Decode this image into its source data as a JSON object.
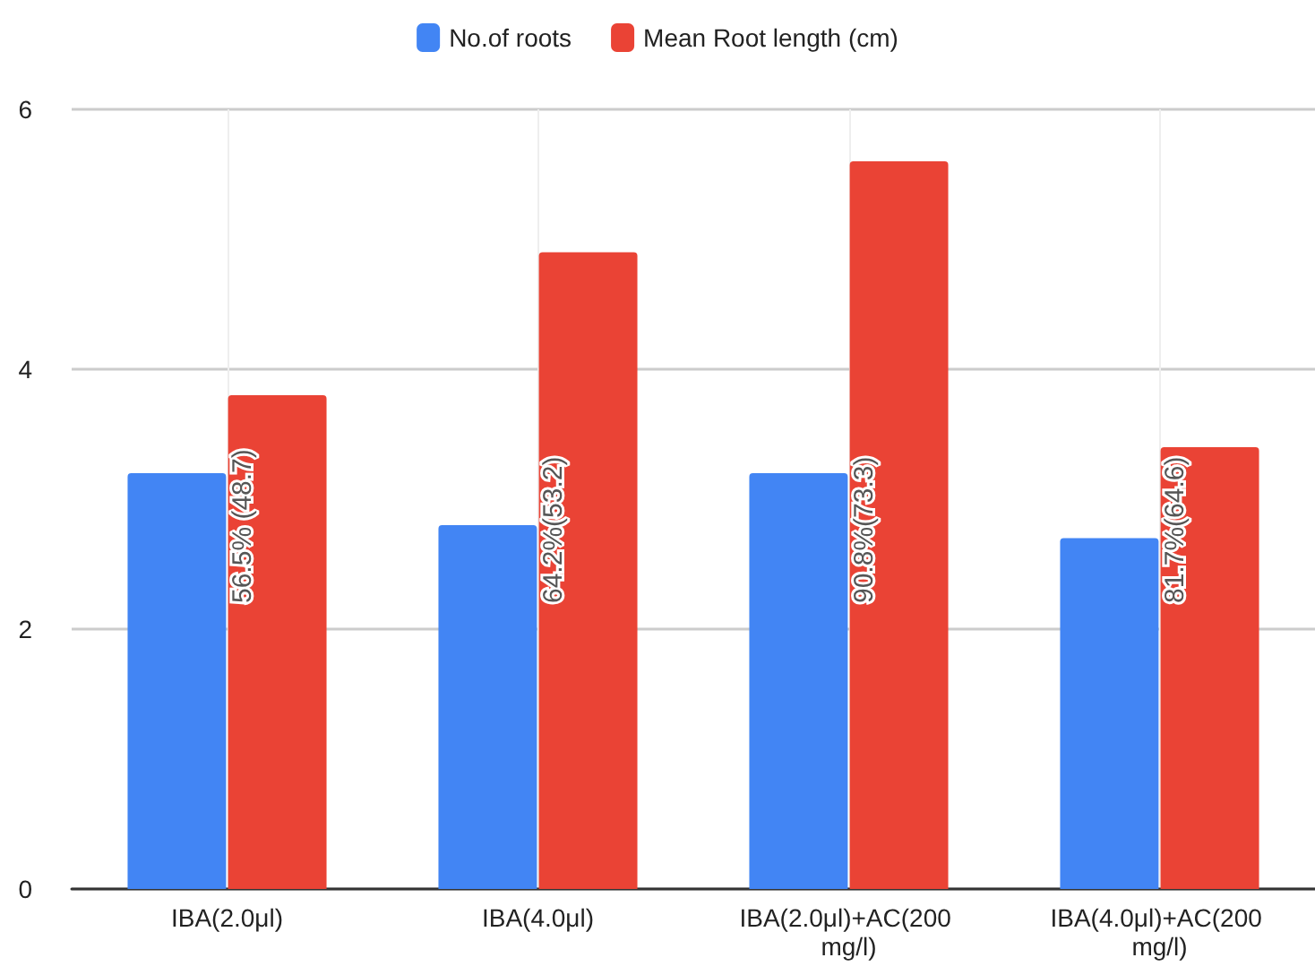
{
  "chart_data": {
    "type": "bar",
    "categories": [
      "IBA(2.0μl)",
      "IBA(4.0μl)",
      "IBA(2.0μl)+AC(200 mg/l)",
      "IBA(4.0μl)+AC(200 mg/l)"
    ],
    "series": [
      {
        "name": "No.of roots",
        "color": "#4285f4",
        "values": [
          3.2,
          2.8,
          3.2,
          2.7
        ]
      },
      {
        "name": "Mean Root length (cm)",
        "color": "#ea4335",
        "values": [
          3.8,
          4.9,
          5.6,
          3.4
        ]
      }
    ],
    "annotations": [
      {
        "text": "56.5% (48.7)",
        "x": "IBA(2.0μl)",
        "y": 2.2
      },
      {
        "text": "64.2%(53.2)",
        "x": "IBA(4.0μl)",
        "y": 2.2
      },
      {
        "text": "90.8%(73.3)",
        "x": "IBA(2.0μl)+AC(200 mg/l)",
        "y": 2.2
      },
      {
        "text": "81.7%(64.6)",
        "x": "IBA(4.0μl)+AC(200 mg/l)",
        "y": 2.2
      }
    ],
    "ylim": [
      0,
      6
    ],
    "yticks": [
      0,
      2,
      4,
      6
    ],
    "grid": true,
    "legend": "top"
  }
}
